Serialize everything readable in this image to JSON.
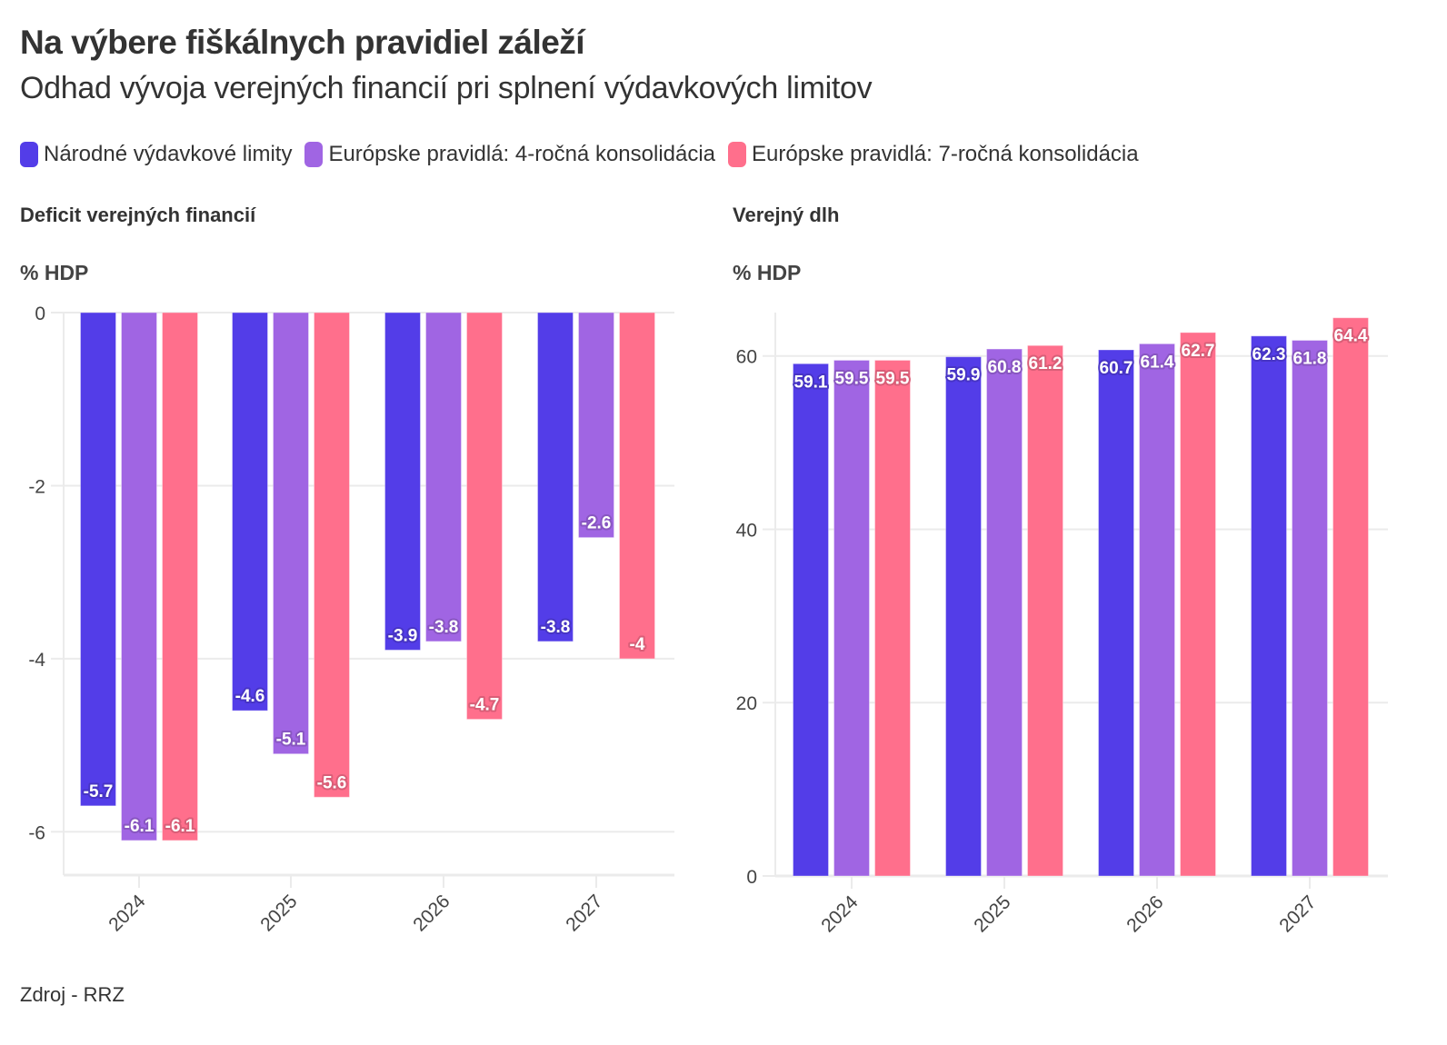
{
  "header": {
    "title": "Na výbere fiškálnych pravidiel záleží",
    "subtitle": "Odhad vývoja verejných financií pri splnení výdavkových limitov"
  },
  "legend": [
    {
      "label": "Národné výdavkové limity",
      "color": "#533de8"
    },
    {
      "label": "Európske pravidlá: 4-ročná konsolidácia",
      "color": "#a065e3"
    },
    {
      "label": "Európske pravidlá: 7-ročná konsolidácia",
      "color": "#ff6f8c"
    }
  ],
  "source": "Zdroj - RRZ",
  "chart_data": [
    {
      "type": "bar",
      "title": "Deficit verejných financií",
      "ylabel": "% HDP",
      "xlabel": "",
      "categories": [
        "2024",
        "2025",
        "2026",
        "2027"
      ],
      "ylim": [
        -6.5,
        0
      ],
      "yticks": [
        0,
        -2,
        -4,
        -6
      ],
      "ytick_labels": [
        "0",
        "-2",
        "-4",
        "-6"
      ],
      "grid": true,
      "legend_position": "top",
      "series": [
        {
          "name": "Národné výdavkové limity",
          "color": "#533de8",
          "values": [
            -5.7,
            -4.6,
            -3.9,
            -3.8
          ],
          "labels": [
            "-5.7",
            "-4.6",
            "-3.9",
            "-3.8"
          ]
        },
        {
          "name": "Európske pravidlá: 4-ročná konsolidácia",
          "color": "#a065e3",
          "values": [
            -6.1,
            -5.1,
            -3.8,
            -2.6
          ],
          "labels": [
            "-6.1",
            "-5.1",
            "-3.8",
            "-2.6"
          ]
        },
        {
          "name": "Európske pravidlá: 7-ročná konsolidácia",
          "color": "#ff6f8c",
          "values": [
            -6.1,
            -5.6,
            -4.7,
            -4.0
          ],
          "labels": [
            "-6.1",
            "-5.6",
            "-4.7",
            "-4"
          ]
        }
      ]
    },
    {
      "type": "bar",
      "title": "Verejný dlh",
      "ylabel": "% HDP",
      "xlabel": "",
      "categories": [
        "2024",
        "2025",
        "2026",
        "2027"
      ],
      "ylim": [
        0,
        65
      ],
      "yticks": [
        0,
        20,
        40,
        60
      ],
      "ytick_labels": [
        "0",
        "20",
        "40",
        "60"
      ],
      "grid": true,
      "legend_position": "top",
      "series": [
        {
          "name": "Národné výdavkové limity",
          "color": "#533de8",
          "values": [
            59.1,
            59.9,
            60.7,
            62.3
          ],
          "labels": [
            "59.1",
            "59.9",
            "60.7",
            "62.3"
          ]
        },
        {
          "name": "Európske pravidlá: 4-ročná konsolidácia",
          "color": "#a065e3",
          "values": [
            59.5,
            60.8,
            61.4,
            61.8
          ],
          "labels": [
            "59.5",
            "60.8",
            "61.4",
            "61.8"
          ]
        },
        {
          "name": "Európske pravidlá: 7-ročná konsolidácia",
          "color": "#ff6f8c",
          "values": [
            59.5,
            61.2,
            62.7,
            64.4
          ],
          "labels": [
            "59.5",
            "61.2",
            "62.7",
            "64.4"
          ]
        }
      ]
    }
  ]
}
